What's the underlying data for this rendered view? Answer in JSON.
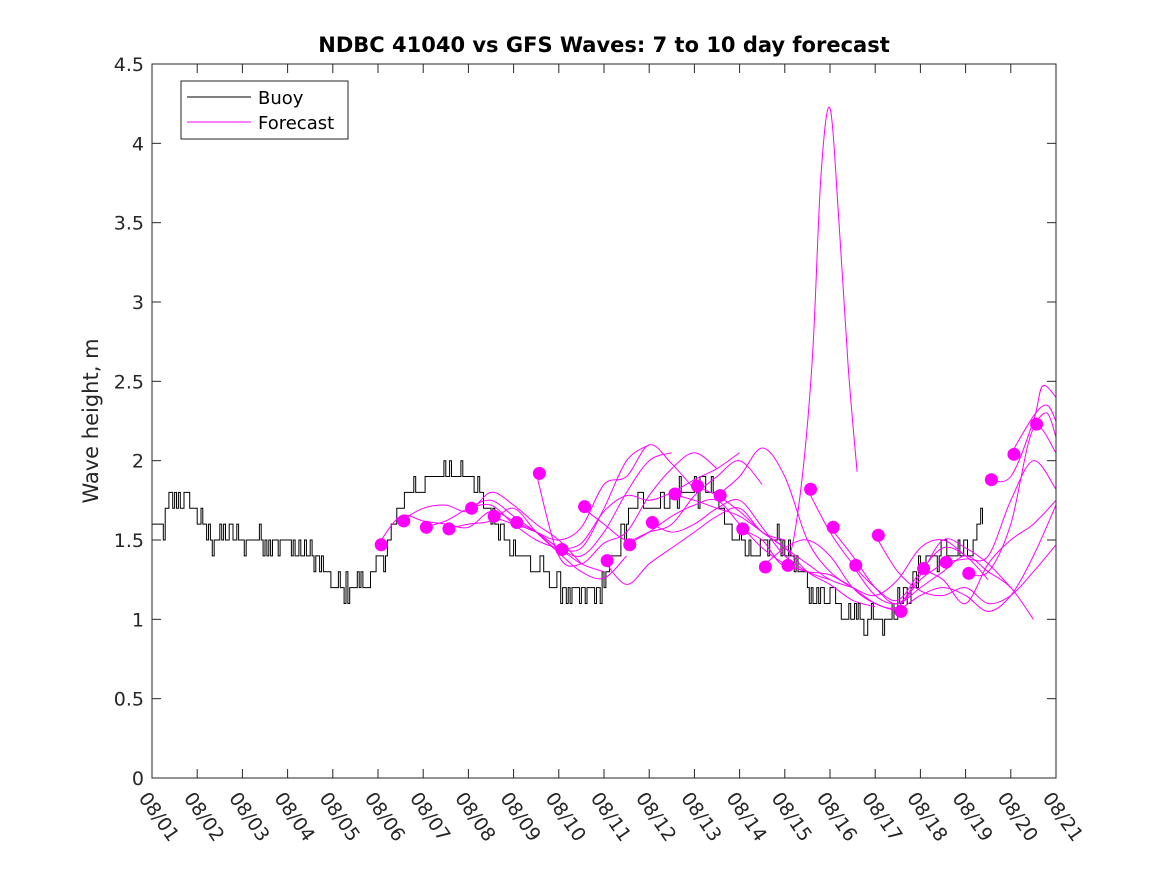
{
  "chart_data": {
    "type": "line",
    "title": "NDBC 41040 vs GFS Waves: 7 to 10 day forecast",
    "xlabel": "",
    "ylabel": "Wave height, m",
    "xlim": [
      0,
      20
    ],
    "ylim": [
      0,
      4.5
    ],
    "grid": false,
    "legend_location": "top-left",
    "x_tick_labels": [
      "08/01",
      "08/02",
      "08/03",
      "08/04",
      "08/05",
      "08/06",
      "08/07",
      "08/08",
      "08/09",
      "08/10",
      "08/11",
      "08/12",
      "08/13",
      "08/14",
      "08/15",
      "08/16",
      "08/17",
      "08/18",
      "08/19",
      "08/20",
      "08/21"
    ],
    "y_ticks": [
      0,
      0.5,
      1,
      1.5,
      2,
      2.5,
      3,
      3.5,
      4,
      4.5
    ],
    "y_tick_labels": [
      "0",
      "0.5",
      "1",
      "1.5",
      "2",
      "2.5",
      "3",
      "3.5",
      "4",
      "4.5"
    ],
    "buoy": {
      "name": "Buoy",
      "color": "#000000",
      "knots": [
        [
          0,
          1.6
        ],
        [
          0.2,
          1.55
        ],
        [
          0.4,
          1.75
        ],
        [
          0.8,
          1.78
        ],
        [
          1.0,
          1.65
        ],
        [
          1.3,
          1.5
        ],
        [
          1.8,
          1.52
        ],
        [
          2.5,
          1.5
        ],
        [
          3.0,
          1.48
        ],
        [
          3.5,
          1.4
        ],
        [
          3.8,
          1.3
        ],
        [
          4.1,
          1.2
        ],
        [
          4.6,
          1.2
        ],
        [
          4.9,
          1.28
        ],
        [
          5.2,
          1.45
        ],
        [
          5.6,
          1.8
        ],
        [
          6.0,
          1.85
        ],
        [
          6.5,
          1.95
        ],
        [
          7.0,
          1.9
        ],
        [
          7.3,
          1.75
        ],
        [
          7.6,
          1.6
        ],
        [
          8.0,
          1.45
        ],
        [
          8.3,
          1.35
        ],
        [
          8.7,
          1.3
        ],
        [
          9.0,
          1.18
        ],
        [
          9.4,
          1.15
        ],
        [
          9.8,
          1.15
        ],
        [
          10.1,
          1.3
        ],
        [
          10.5,
          1.6
        ],
        [
          10.8,
          1.75
        ],
        [
          11.2,
          1.72
        ],
        [
          11.6,
          1.8
        ],
        [
          12.0,
          1.82
        ],
        [
          12.4,
          1.8
        ],
        [
          12.7,
          1.6
        ],
        [
          13.0,
          1.55
        ],
        [
          13.3,
          1.35
        ],
        [
          13.5,
          1.45
        ],
        [
          13.7,
          1.5
        ],
        [
          14.0,
          1.5
        ],
        [
          14.3,
          1.3
        ],
        [
          14.5,
          1.2
        ],
        [
          14.8,
          1.15
        ],
        [
          15.1,
          1.18
        ],
        [
          15.4,
          1.05
        ],
        [
          15.8,
          1.0
        ],
        [
          16.2,
          1.0
        ],
        [
          16.6,
          1.15
        ],
        [
          17.0,
          1.3
        ],
        [
          17.3,
          1.42
        ],
        [
          17.8,
          1.42
        ],
        [
          18.2,
          1.45
        ],
        [
          18.4,
          1.65
        ]
      ]
    },
    "forecast": {
      "name": "Forecast",
      "color": "#ff00ff",
      "series": [
        {
          "x": [
            5.0,
            5.5,
            6.0,
            6.5,
            7.0,
            7.5,
            8.0,
            8.5,
            9.0
          ],
          "y": [
            1.47,
            1.65,
            1.62,
            1.6,
            1.58,
            1.68,
            1.62,
            1.55,
            1.42
          ]
        },
        {
          "x": [
            5.5,
            6.0,
            6.5,
            7.0,
            7.5,
            8.0,
            8.5,
            9.0,
            9.5
          ],
          "y": [
            1.62,
            1.7,
            1.72,
            1.68,
            1.8,
            1.72,
            1.6,
            1.5,
            1.35
          ]
        },
        {
          "x": [
            6.0,
            6.5,
            7.0,
            7.5,
            8.0,
            8.5,
            9.0,
            9.5,
            10.0
          ],
          "y": [
            1.58,
            1.62,
            1.7,
            1.75,
            1.65,
            1.55,
            1.45,
            1.35,
            1.3
          ]
        },
        {
          "x": [
            6.5,
            7.0,
            7.5,
            8.0,
            8.5,
            9.0,
            9.5,
            10.0,
            10.5
          ],
          "y": [
            1.57,
            1.6,
            1.62,
            1.7,
            1.55,
            1.42,
            1.3,
            1.26,
            1.4
          ]
        },
        {
          "x": [
            7.0,
            7.5,
            8.0,
            8.5,
            9.0,
            9.5,
            10.0,
            10.5,
            11.0
          ],
          "y": [
            1.7,
            1.72,
            1.6,
            1.5,
            1.45,
            1.45,
            1.7,
            2.0,
            2.1
          ]
        },
        {
          "x": [
            7.5,
            8.0,
            8.5,
            9.0,
            9.5,
            10.0,
            10.5,
            11.0,
            11.5
          ],
          "y": [
            1.65,
            1.6,
            1.55,
            1.45,
            1.4,
            1.55,
            1.8,
            2.0,
            2.05
          ]
        },
        {
          "x": [
            8.0,
            8.5,
            9.0,
            9.5,
            10.0,
            10.5,
            11.0,
            11.5,
            12.0
          ],
          "y": [
            1.61,
            1.55,
            1.5,
            1.58,
            1.85,
            1.9,
            2.1,
            1.98,
            1.82
          ]
        },
        {
          "x": [
            8.5,
            9.0,
            9.5,
            10.0,
            10.5,
            11.0,
            11.5,
            12.0,
            12.5
          ],
          "y": [
            1.92,
            1.4,
            1.35,
            1.48,
            1.55,
            1.78,
            1.95,
            2.05,
            1.95
          ]
        },
        {
          "x": [
            9.0,
            9.5,
            10.0,
            10.5,
            11.0,
            11.5,
            12.0,
            12.5,
            13.0
          ],
          "y": [
            1.44,
            1.48,
            1.68,
            1.78,
            1.75,
            1.8,
            1.88,
            1.95,
            2.05
          ]
        },
        {
          "x": [
            9.5,
            10.0,
            10.5,
            11.0,
            11.5,
            12.0,
            12.5,
            13.0,
            13.5
          ],
          "y": [
            1.71,
            1.6,
            1.5,
            1.55,
            1.6,
            1.78,
            1.9,
            2.0,
            1.85
          ]
        },
        {
          "x": [
            10.0,
            10.5,
            11.0,
            11.5,
            12.0,
            12.5,
            13.0,
            13.5,
            14.0
          ],
          "y": [
            1.37,
            1.22,
            1.35,
            1.45,
            1.55,
            1.65,
            1.7,
            1.55,
            1.5
          ]
        },
        {
          "x": [
            10.5,
            11.0,
            11.5,
            12.0,
            12.5,
            13.0,
            13.5,
            14.0,
            14.5
          ],
          "y": [
            1.47,
            1.55,
            1.65,
            1.72,
            1.75,
            1.6,
            1.45,
            1.35,
            1.3
          ]
        },
        {
          "x": [
            11.0,
            11.5,
            12.0,
            12.5,
            13.0,
            13.5,
            14.0,
            14.5,
            15.0
          ],
          "y": [
            1.61,
            1.55,
            1.6,
            1.7,
            1.75,
            1.58,
            1.4,
            1.3,
            1.25
          ]
        },
        {
          "x": [
            11.5,
            12.0,
            12.5,
            13.0,
            13.5,
            14.0,
            14.5,
            15.0,
            15.5
          ],
          "y": [
            1.79,
            1.75,
            1.7,
            1.65,
            1.55,
            1.45,
            1.35,
            1.25,
            1.2
          ]
        },
        {
          "x": [
            12.0,
            12.5,
            13.0,
            13.5,
            14.0,
            14.5,
            15.0,
            15.5,
            16.0
          ],
          "y": [
            1.84,
            1.78,
            1.68,
            1.55,
            1.45,
            1.3,
            1.22,
            1.12,
            1.08
          ]
        },
        {
          "x": [
            12.5,
            13.0,
            13.5,
            14.0,
            14.5,
            15.0,
            15.5,
            16.0,
            16.5
          ],
          "y": [
            1.78,
            1.9,
            2.08,
            1.9,
            1.5,
            1.3,
            1.2,
            1.1,
            1.05
          ]
        },
        {
          "x": [
            13.0,
            13.5,
            14.0,
            14.3,
            14.6,
            14.8,
            15.0,
            15.2,
            15.4,
            15.6
          ],
          "y": [
            1.57,
            1.5,
            1.35,
            1.7,
            2.6,
            3.8,
            4.22,
            3.5,
            2.6,
            1.93
          ]
        },
        {
          "x": [
            13.5,
            14.0,
            14.5,
            15.0,
            15.5,
            16.0,
            16.5,
            17.0,
            17.5
          ],
          "y": [
            1.33,
            1.45,
            1.5,
            1.4,
            1.2,
            1.1,
            1.08,
            1.25,
            1.35
          ]
        },
        {
          "x": [
            14.0,
            14.5,
            15.0,
            15.5,
            16.0,
            16.5,
            17.0,
            17.5,
            18.0
          ],
          "y": [
            1.34,
            1.3,
            1.28,
            1.2,
            1.15,
            1.25,
            1.45,
            1.5,
            1.4
          ]
        },
        {
          "x": [
            14.5,
            15.0,
            15.5,
            16.0,
            16.5,
            17.0,
            17.5,
            18.0,
            18.5
          ],
          "y": [
            1.82,
            1.55,
            1.35,
            1.2,
            1.12,
            1.3,
            1.45,
            1.4,
            1.25
          ]
        },
        {
          "x": [
            15.0,
            15.5,
            16.0,
            16.5,
            17.0,
            17.5,
            18.0,
            18.5,
            19.0
          ],
          "y": [
            1.58,
            1.4,
            1.2,
            1.1,
            1.28,
            1.5,
            1.45,
            1.35,
            1.2
          ]
        },
        {
          "x": [
            15.5,
            16.0,
            16.5,
            17.0,
            17.5,
            18.0,
            18.5,
            19.0,
            19.5
          ],
          "y": [
            1.34,
            1.15,
            1.1,
            1.2,
            1.3,
            1.4,
            1.3,
            1.2,
            1.0
          ]
        },
        {
          "x": [
            16.0,
            16.5,
            17.0,
            17.5,
            18.0,
            18.5,
            19.0,
            19.5,
            20.0
          ],
          "y": [
            1.53,
            1.3,
            1.18,
            1.15,
            1.2,
            1.1,
            1.15,
            1.3,
            1.47
          ]
        },
        {
          "x": [
            16.5,
            17.0,
            17.5,
            18.0,
            18.5,
            19.0,
            19.5,
            20.0
          ],
          "y": [
            1.05,
            1.15,
            1.2,
            1.15,
            1.05,
            1.15,
            1.4,
            1.72
          ]
        },
        {
          "x": [
            17.0,
            17.5,
            18.0,
            18.5,
            19.0,
            19.5,
            20.0
          ],
          "y": [
            1.32,
            1.25,
            1.1,
            1.35,
            1.5,
            1.6,
            1.75
          ]
        },
        {
          "x": [
            17.5,
            18.0,
            18.5,
            19.0,
            19.5,
            20.0
          ],
          "y": [
            1.36,
            1.38,
            1.4,
            1.75,
            2.0,
            1.82
          ]
        },
        {
          "x": [
            18.0,
            18.5,
            19.0,
            19.5,
            20.0
          ],
          "y": [
            1.29,
            1.3,
            1.6,
            2.2,
            2.05
          ]
        },
        {
          "x": [
            18.5,
            19.0,
            19.5,
            19.7,
            20.0
          ],
          "y": [
            1.88,
            1.9,
            2.25,
            2.47,
            2.4
          ]
        },
        {
          "x": [
            19.0,
            19.5,
            19.8,
            20.0
          ],
          "y": [
            2.04,
            2.28,
            2.35,
            2.25
          ]
        },
        {
          "x": [
            19.5,
            19.8,
            20.0
          ],
          "y": [
            2.23,
            2.3,
            2.15
          ]
        }
      ],
      "markers": [
        [
          5.07,
          1.47
        ],
        [
          5.57,
          1.62
        ],
        [
          6.07,
          1.58
        ],
        [
          6.57,
          1.57
        ],
        [
          7.07,
          1.7
        ],
        [
          7.57,
          1.65
        ],
        [
          8.07,
          1.61
        ],
        [
          8.57,
          1.92
        ],
        [
          9.07,
          1.44
        ],
        [
          9.57,
          1.71
        ],
        [
          10.07,
          1.37
        ],
        [
          10.57,
          1.47
        ],
        [
          11.07,
          1.61
        ],
        [
          11.57,
          1.79
        ],
        [
          12.07,
          1.84
        ],
        [
          12.57,
          1.78
        ],
        [
          13.07,
          1.57
        ],
        [
          13.57,
          1.33
        ],
        [
          14.07,
          1.34
        ],
        [
          14.57,
          1.82
        ],
        [
          15.07,
          1.58
        ],
        [
          15.57,
          1.34
        ],
        [
          16.07,
          1.53
        ],
        [
          16.57,
          1.05
        ],
        [
          17.07,
          1.32
        ],
        [
          17.57,
          1.36
        ],
        [
          18.07,
          1.29
        ],
        [
          18.57,
          1.88
        ],
        [
          19.07,
          2.04
        ],
        [
          19.57,
          2.23
        ]
      ]
    }
  },
  "legend": {
    "buoy_label": "Buoy",
    "forecast_label": "Forecast"
  }
}
